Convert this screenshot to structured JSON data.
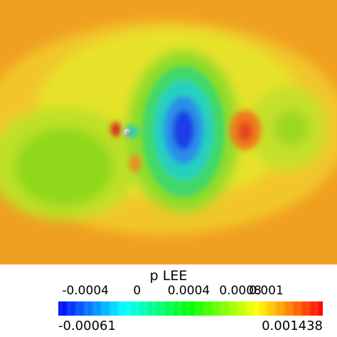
{
  "legend": {
    "title": "p LEE",
    "ticks": [
      {
        "label": "-0.0004",
        "value": -0.0004
      },
      {
        "label": "0",
        "value": 0
      },
      {
        "label": "0.0004",
        "value": 0.0004
      },
      {
        "label": "0.0008",
        "value": 0.0008
      },
      {
        "label": "0.001",
        "value": 0.001
      }
    ],
    "range_min": "-0.00061",
    "range_max": "0.001438",
    "min_value": -0.00061,
    "max_value": 0.001438
  },
  "colormap": [
    "#0000ff",
    "#00ffff",
    "#00ff00",
    "#ffff00",
    "#ff0000"
  ]
}
